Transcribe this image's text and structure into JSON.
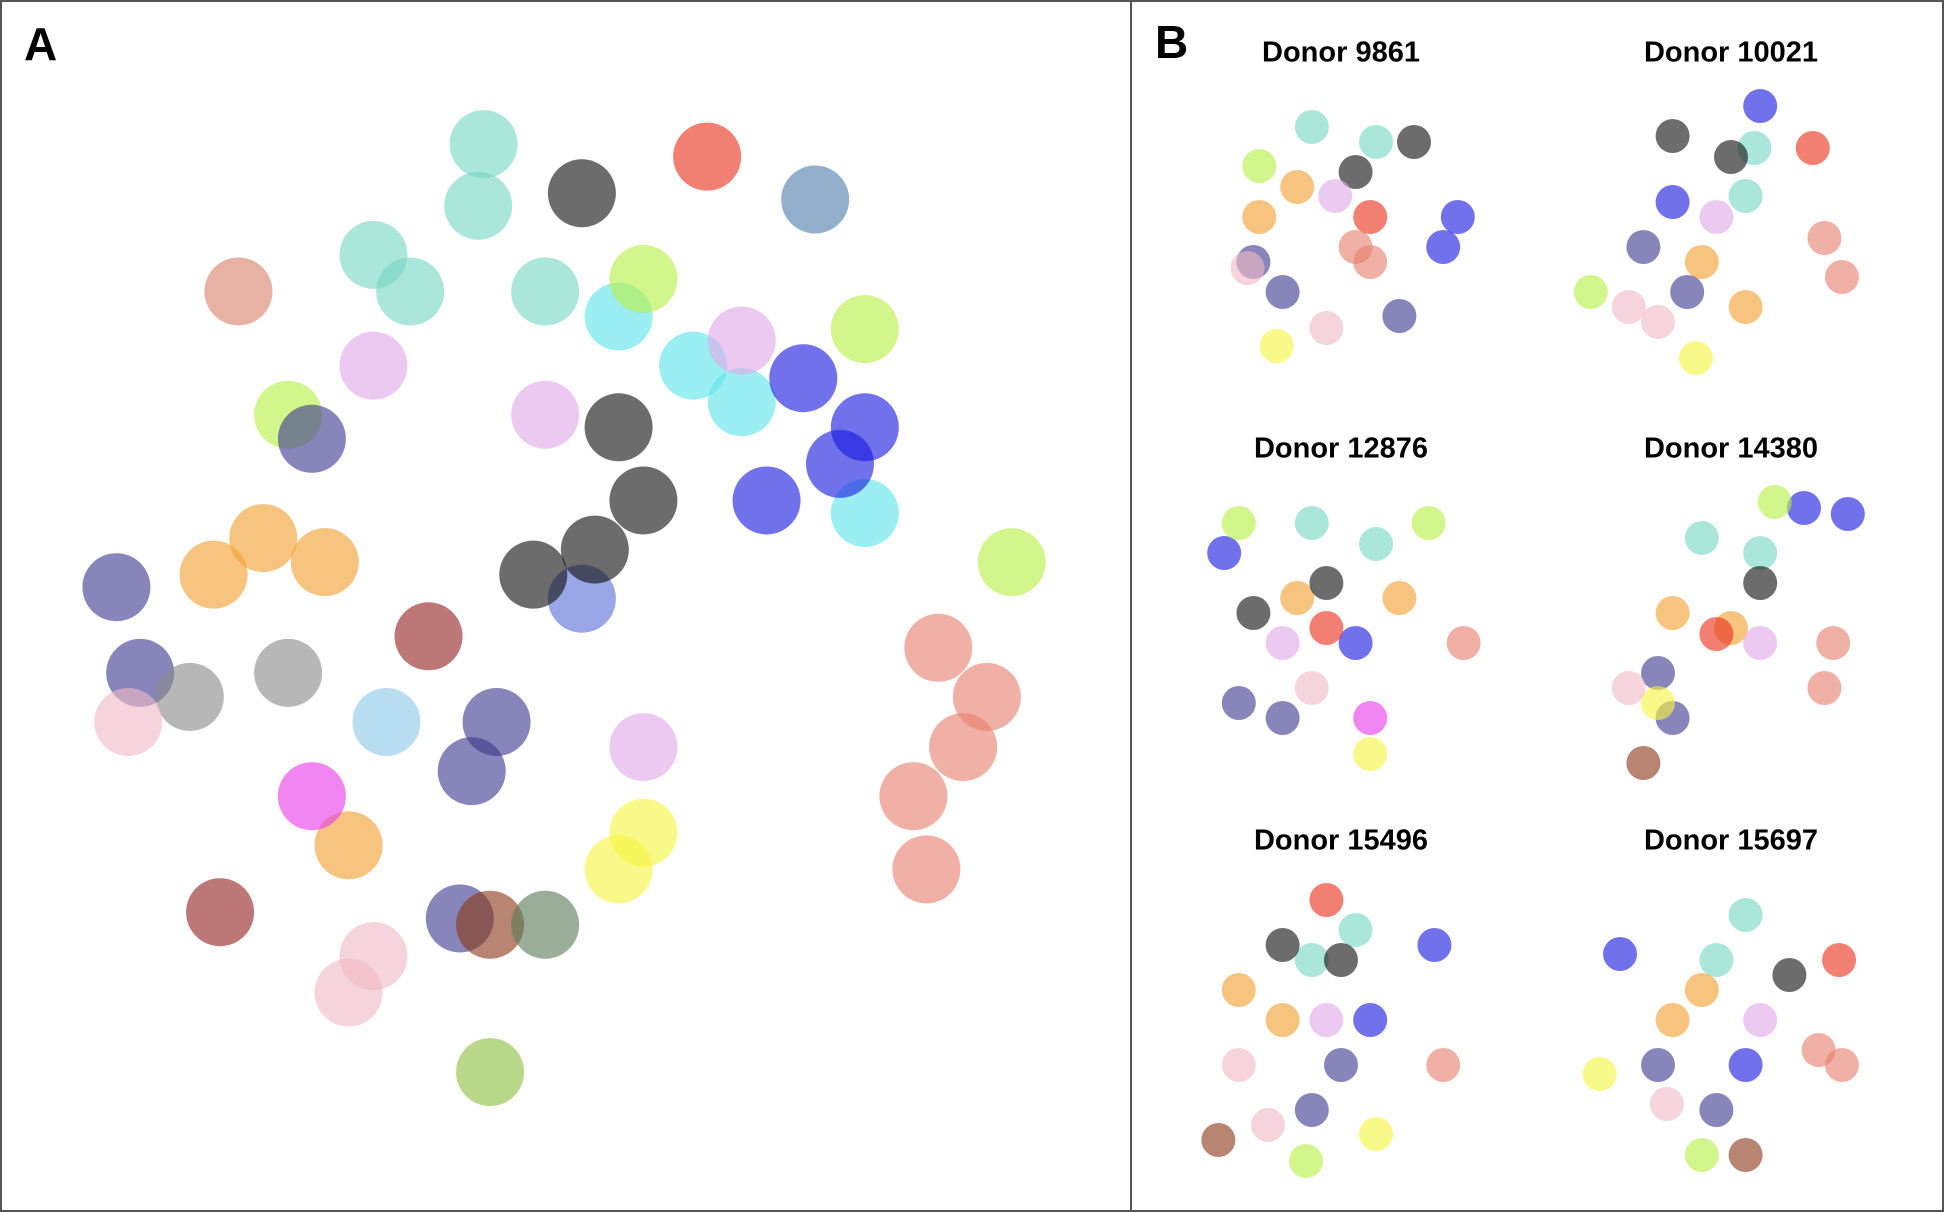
{
  "panel_labels": [
    "A",
    "B"
  ],
  "chart_data": [
    {
      "type": "scatter",
      "xlim": [
        0,
        100
      ],
      "ylim": [
        0,
        100
      ],
      "series": [
        {
          "color": "#76d7c4",
          "x": [
            41.5,
            35.2,
            47.7,
            31.8,
            42.0
          ],
          "y": [
            89.4,
            81.2,
            81.2,
            84.7,
            95.3
          ]
        },
        {
          "color": "#e8301c",
          "x": [
            62.7
          ],
          "y": [
            94.1
          ]
        },
        {
          "color": "#4f7fad",
          "x": [
            72.7
          ],
          "y": [
            90.0
          ]
        },
        {
          "color": "#d9826a",
          "x": [
            19.3
          ],
          "y": [
            81.2
          ]
        },
        {
          "color": "#5ee3ea",
          "x": [
            61.4,
            65.9,
            77.3,
            54.5
          ],
          "y": [
            74.1,
            70.6,
            60.0,
            78.8
          ]
        },
        {
          "color": "#b7f046",
          "x": [
            77.3,
            56.8,
            23.9,
            90.9
          ],
          "y": [
            77.6,
            82.4,
            69.4,
            55.3
          ]
        },
        {
          "color": "#e0a8e8",
          "x": [
            47.7,
            65.9,
            56.8,
            31.8
          ],
          "y": [
            69.4,
            76.5,
            37.6,
            74.1
          ]
        },
        {
          "color": "#f0a030",
          "x": [
            21.6,
            17.0,
            29.5,
            27.3
          ],
          "y": [
            57.6,
            54.1,
            28.2,
            55.3
          ]
        },
        {
          "color": "#3d3a8e",
          "x": [
            8.0,
            10.2,
            40.9,
            39.8,
            43.2,
            26.1
          ],
          "y": [
            52.9,
            44.7,
            35.3,
            21.2,
            40.0,
            67.1
          ]
        },
        {
          "color": "#8a8a8a",
          "x": [
            23.9,
            14.8
          ],
          "y": [
            44.7,
            42.4
          ]
        },
        {
          "color": "#e8806e",
          "x": [
            86.4,
            81.8,
            88.6,
            83.0,
            84.1
          ],
          "y": [
            37.6,
            32.9,
            42.4,
            25.9,
            47.1
          ]
        },
        {
          "color": "#f5f542",
          "x": [
            56.8,
            54.5
          ],
          "y": [
            29.4,
            25.9
          ]
        },
        {
          "color": "#e83ae8",
          "x": [
            26.1
          ],
          "y": [
            32.9
          ]
        },
        {
          "color": "#962323",
          "x": [
            17.6,
            36.9
          ],
          "y": [
            21.8,
            48.2
          ]
        },
        {
          "color": "#f0b9c5",
          "x": [
            31.8,
            9.1,
            29.5
          ],
          "y": [
            17.6,
            40.0,
            14.1
          ]
        },
        {
          "color": "#8b3a1a",
          "x": [
            42.6
          ],
          "y": [
            20.6
          ]
        },
        {
          "color": "#5a7a5a",
          "x": [
            47.7
          ],
          "y": [
            20.6
          ]
        },
        {
          "color": "#8fc040",
          "x": [
            42.6
          ],
          "y": [
            6.5
          ]
        },
        {
          "color": "#8ec8e8",
          "x": [
            33.0
          ],
          "y": [
            40.0
          ]
        },
        {
          "color": "#5a70d8",
          "x": [
            51.1
          ],
          "y": [
            51.8
          ]
        },
        {
          "color": "#1a1ae0",
          "x": [
            75.0,
            71.6,
            77.3,
            68.2
          ],
          "y": [
            64.7,
            72.9,
            68.2,
            61.2
          ]
        },
        {
          "color": "#111111",
          "x": [
            51.1,
            54.5,
            52.3,
            46.6,
            56.8
          ],
          "y": [
            90.6,
            68.2,
            56.5,
            54.1,
            61.2
          ]
        }
      ]
    },
    {
      "type": "scatter",
      "title": "Donor 9861",
      "xlim": [
        0,
        100
      ],
      "ylim": [
        0,
        100
      ],
      "series": [
        {
          "color": "#76d7c4",
          "x": [
            40,
            62
          ],
          "y": [
            85,
            80
          ]
        },
        {
          "color": "#1a1ae0",
          "x": [
            90,
            85
          ],
          "y": [
            55,
            45
          ]
        },
        {
          "color": "#e8806e",
          "x": [
            55,
            60
          ],
          "y": [
            45,
            40
          ]
        },
        {
          "color": "#f0a030",
          "x": [
            22,
            35
          ],
          "y": [
            55,
            65
          ]
        },
        {
          "color": "#3d3a8e",
          "x": [
            30,
            70,
            20
          ],
          "y": [
            30,
            22,
            40
          ]
        },
        {
          "color": "#f5f542",
          "x": [
            28
          ],
          "y": [
            12
          ]
        },
        {
          "color": "#111111",
          "x": [
            75,
            55
          ],
          "y": [
            80,
            70
          ]
        },
        {
          "color": "#e0a8e8",
          "x": [
            48
          ],
          "y": [
            62
          ]
        },
        {
          "color": "#f0b9c5",
          "x": [
            18,
            45
          ],
          "y": [
            38,
            18
          ]
        },
        {
          "color": "#b7f046",
          "x": [
            22
          ],
          "y": [
            72
          ]
        },
        {
          "color": "#e8301c",
          "x": [
            60
          ],
          "y": [
            55
          ]
        }
      ]
    },
    {
      "type": "scatter",
      "title": "Donor 10021",
      "xlim": [
        0,
        100
      ],
      "ylim": [
        0,
        100
      ],
      "series": [
        {
          "color": "#76d7c4",
          "x": [
            58,
            55
          ],
          "y": [
            78,
            62
          ]
        },
        {
          "color": "#1a1ae0",
          "x": [
            60,
            30
          ],
          "y": [
            92,
            60
          ]
        },
        {
          "color": "#e8806e",
          "x": [
            88,
            82
          ],
          "y": [
            35,
            48
          ]
        },
        {
          "color": "#f0a030",
          "x": [
            55,
            40
          ],
          "y": [
            25,
            40
          ]
        },
        {
          "color": "#3d3a8e",
          "x": [
            20,
            35
          ],
          "y": [
            45,
            30
          ]
        },
        {
          "color": "#f5f542",
          "x": [
            38
          ],
          "y": [
            8
          ]
        },
        {
          "color": "#111111",
          "x": [
            30,
            50
          ],
          "y": [
            82,
            75
          ]
        },
        {
          "color": "#e0a8e8",
          "x": [
            45
          ],
          "y": [
            55
          ]
        },
        {
          "color": "#f0b9c5",
          "x": [
            15,
            25
          ],
          "y": [
            25,
            20
          ]
        },
        {
          "color": "#b7f046",
          "x": [
            2
          ],
          "y": [
            30
          ]
        },
        {
          "color": "#e8301c",
          "x": [
            78
          ],
          "y": [
            78
          ]
        }
      ]
    },
    {
      "type": "scatter",
      "title": "Donor 12876",
      "xlim": [
        0,
        100
      ],
      "ylim": [
        0,
        100
      ],
      "series": [
        {
          "color": "#76d7c4",
          "x": [
            62,
            40
          ],
          "y": [
            78,
            85
          ]
        },
        {
          "color": "#1a1ae0",
          "x": [
            10,
            55
          ],
          "y": [
            75,
            45
          ]
        },
        {
          "color": "#e8806e",
          "x": [
            92
          ],
          "y": [
            45
          ]
        },
        {
          "color": "#f0a030",
          "x": [
            35,
            70
          ],
          "y": [
            60,
            60
          ]
        },
        {
          "color": "#3d3a8e",
          "x": [
            15,
            30
          ],
          "y": [
            25,
            20
          ]
        },
        {
          "color": "#f5f542",
          "x": [
            60
          ],
          "y": [
            8
          ]
        },
        {
          "color": "#111111",
          "x": [
            20,
            45
          ],
          "y": [
            55,
            65
          ]
        },
        {
          "color": "#e0a8e8",
          "x": [
            30
          ],
          "y": [
            45
          ]
        },
        {
          "color": "#f0b9c5",
          "x": [
            40
          ],
          "y": [
            30
          ]
        },
        {
          "color": "#b7f046",
          "x": [
            15,
            80
          ],
          "y": [
            85,
            85
          ]
        },
        {
          "color": "#e8301c",
          "x": [
            45
          ],
          "y": [
            50
          ]
        },
        {
          "color": "#e83ae8",
          "x": [
            60
          ],
          "y": [
            20
          ]
        }
      ]
    },
    {
      "type": "scatter",
      "title": "Donor 14380",
      "xlim": [
        0,
        100
      ],
      "ylim": [
        0,
        100
      ],
      "series": [
        {
          "color": "#76d7c4",
          "x": [
            40,
            60
          ],
          "y": [
            80,
            75
          ]
        },
        {
          "color": "#1a1ae0",
          "x": [
            90,
            75
          ],
          "y": [
            88,
            90
          ]
        },
        {
          "color": "#e8806e",
          "x": [
            82,
            85
          ],
          "y": [
            30,
            45
          ]
        },
        {
          "color": "#f0a030",
          "x": [
            30,
            50
          ],
          "y": [
            55,
            50
          ]
        },
        {
          "color": "#3d3a8e",
          "x": [
            25,
            30
          ],
          "y": [
            35,
            20
          ]
        },
        {
          "color": "#f5f542",
          "x": [
            25
          ],
          "y": [
            25
          ]
        },
        {
          "color": "#111111",
          "x": [
            60
          ],
          "y": [
            65
          ]
        },
        {
          "color": "#e0a8e8",
          "x": [
            60
          ],
          "y": [
            45
          ]
        },
        {
          "color": "#f0b9c5",
          "x": [
            15
          ],
          "y": [
            30
          ]
        },
        {
          "color": "#8b3a1a",
          "x": [
            20
          ],
          "y": [
            5
          ]
        },
        {
          "color": "#b7f046",
          "x": [
            65
          ],
          "y": [
            92
          ]
        },
        {
          "color": "#e8301c",
          "x": [
            45
          ],
          "y": [
            48
          ]
        }
      ]
    },
    {
      "type": "scatter",
      "title": "Donor 15496",
      "xlim": [
        0,
        100
      ],
      "ylim": [
        0,
        100
      ],
      "series": [
        {
          "color": "#76d7c4",
          "x": [
            55,
            40
          ],
          "y": [
            80,
            70
          ]
        },
        {
          "color": "#1a1ae0",
          "x": [
            82,
            60
          ],
          "y": [
            75,
            50
          ]
        },
        {
          "color": "#e8806e",
          "x": [
            85
          ],
          "y": [
            35
          ]
        },
        {
          "color": "#f0a030",
          "x": [
            15,
            30
          ],
          "y": [
            60,
            50
          ]
        },
        {
          "color": "#3d3a8e",
          "x": [
            40,
            50
          ],
          "y": [
            20,
            35
          ]
        },
        {
          "color": "#f5f542",
          "x": [
            62
          ],
          "y": [
            12
          ]
        },
        {
          "color": "#111111",
          "x": [
            30,
            50
          ],
          "y": [
            75,
            70
          ]
        },
        {
          "color": "#e0a8e8",
          "x": [
            45
          ],
          "y": [
            50
          ]
        },
        {
          "color": "#f0b9c5",
          "x": [
            25,
            15
          ],
          "y": [
            15,
            35
          ]
        },
        {
          "color": "#8b3a1a",
          "x": [
            8
          ],
          "y": [
            10
          ]
        },
        {
          "color": "#b7f046",
          "x": [
            38
          ],
          "y": [
            3
          ]
        },
        {
          "color": "#e8301c",
          "x": [
            45
          ],
          "y": [
            90
          ]
        }
      ]
    },
    {
      "type": "scatter",
      "title": "Donor 15697",
      "xlim": [
        0,
        100
      ],
      "ylim": [
        0,
        100
      ],
      "series": [
        {
          "color": "#76d7c4",
          "x": [
            55,
            45
          ],
          "y": [
            85,
            70
          ]
        },
        {
          "color": "#1a1ae0",
          "x": [
            12,
            55
          ],
          "y": [
            72,
            35
          ]
        },
        {
          "color": "#e8806e",
          "x": [
            88,
            80
          ],
          "y": [
            35,
            40
          ]
        },
        {
          "color": "#f0a030",
          "x": [
            30,
            40
          ],
          "y": [
            50,
            60
          ]
        },
        {
          "color": "#3d3a8e",
          "x": [
            45,
            25
          ],
          "y": [
            20,
            35
          ]
        },
        {
          "color": "#f5f542",
          "x": [
            5
          ],
          "y": [
            32
          ]
        },
        {
          "color": "#111111",
          "x": [
            70
          ],
          "y": [
            65
          ]
        },
        {
          "color": "#e0a8e8",
          "x": [
            60
          ],
          "y": [
            50
          ]
        },
        {
          "color": "#f0b9c5",
          "x": [
            28
          ],
          "y": [
            22
          ]
        },
        {
          "color": "#8b3a1a",
          "x": [
            55
          ],
          "y": [
            5
          ]
        },
        {
          "color": "#b7f046",
          "x": [
            40
          ],
          "y": [
            5
          ]
        },
        {
          "color": "#e8301c",
          "x": [
            87
          ],
          "y": [
            70
          ]
        }
      ]
    }
  ]
}
